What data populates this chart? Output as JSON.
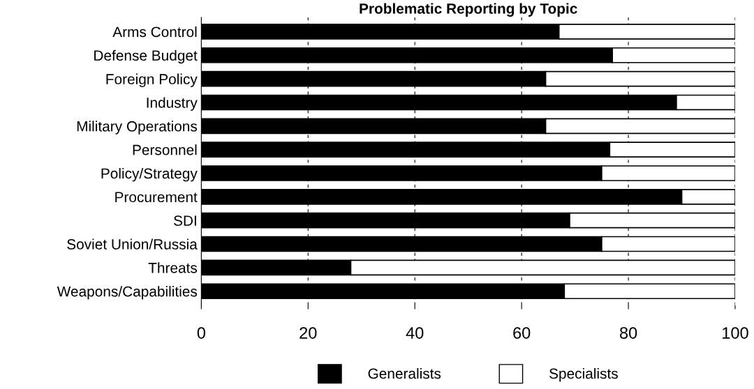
{
  "chart_data": {
    "type": "bar",
    "orientation": "horizontal",
    "stacked": true,
    "title": "Problematic Reporting by Topic",
    "categories": [
      "Arms Control",
      "Defense Budget",
      "Foreign Policy",
      "Industry",
      "Military Operations",
      "Personnel",
      "Policy/Strategy",
      "Procurement",
      "SDI",
      "Soviet Union/Russia",
      "Threats",
      "Weapons/Capabilities"
    ],
    "series": [
      {
        "name": "Generalists",
        "color": "#000000",
        "values": [
          67,
          77,
          64.5,
          89,
          64.5,
          76.5,
          75,
          90,
          69,
          75,
          28,
          68
        ]
      },
      {
        "name": "Specialists",
        "color": "#ffffff",
        "values": [
          33,
          23,
          35.5,
          11,
          35.5,
          23.5,
          25,
          10,
          31,
          25,
          72,
          32
        ]
      }
    ],
    "xlim": [
      0,
      100
    ],
    "xticks": [
      0,
      20,
      40,
      60,
      80,
      100
    ],
    "grid": "x",
    "legend": "bottom"
  }
}
